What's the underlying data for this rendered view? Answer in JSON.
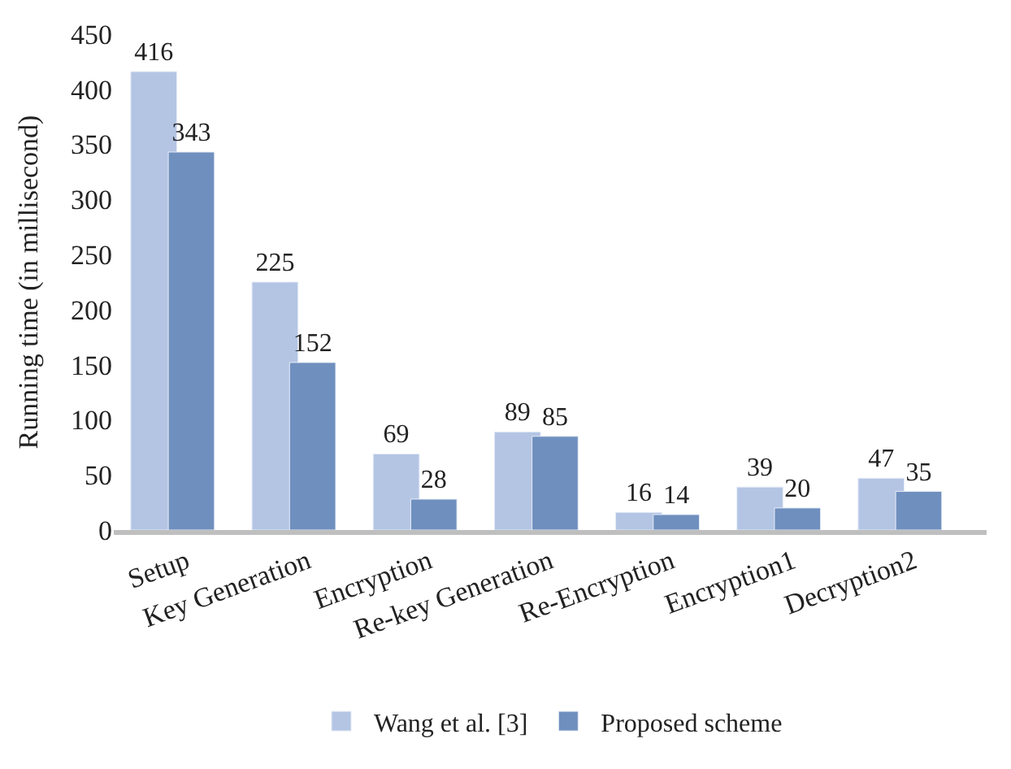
{
  "chart_data": {
    "type": "bar",
    "ylabel": "Running time (in millisecond)",
    "categories": [
      "Setup",
      "Key Generation",
      "Encryption",
      "Re-key Generation",
      "Re-Encryption",
      "Encryption1",
      "Decryption2"
    ],
    "series": [
      {
        "name": "Wang et al. [3]",
        "color": "#b4c5e4",
        "values": [
          416,
          225,
          69,
          89,
          16,
          39,
          47
        ]
      },
      {
        "name": "Proposed scheme",
        "color": "#6f8fbe",
        "values": [
          343,
          152,
          28,
          85,
          14,
          20,
          35
        ]
      }
    ],
    "ylim": [
      0,
      450
    ],
    "yticks": [
      0,
      50,
      100,
      150,
      200,
      250,
      300,
      350,
      400,
      450
    ],
    "legend": "bottom",
    "data_labels": true
  }
}
